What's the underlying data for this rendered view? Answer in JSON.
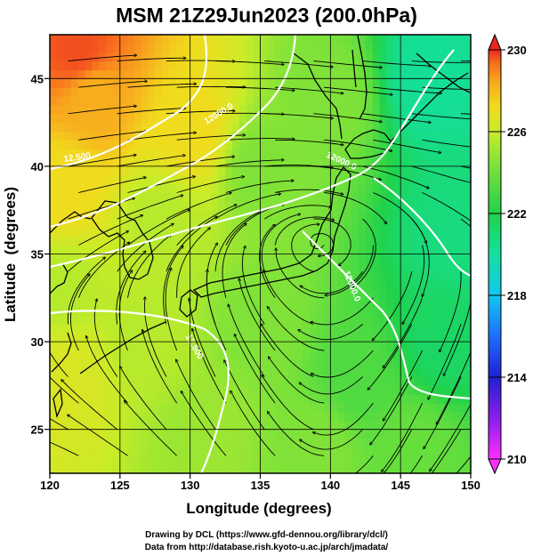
{
  "title": "MSM 21Z29Jun2023 (200.0hPa)",
  "x_axis": {
    "label": "Longitude (degrees)",
    "ticks": [
      "120",
      "125",
      "130",
      "135",
      "140",
      "145",
      "150"
    ]
  },
  "y_axis": {
    "label": "Latitude  (degrees)",
    "ticks": [
      "25",
      "30",
      "35",
      "40",
      "45"
    ]
  },
  "colorbar": {
    "ticks": [
      "210",
      "214",
      "218",
      "222",
      "226",
      "230"
    ],
    "min": 210,
    "max": 230,
    "colors": [
      "#ff30ff",
      "#a020f0",
      "#2020d0",
      "#1e6eff",
      "#12c8f0",
      "#14e0a0",
      "#20d24a",
      "#6ee03c",
      "#c8ec28",
      "#f0dc1e",
      "#f8aa1e",
      "#f86a1e",
      "#e6281e"
    ]
  },
  "contour_labels": [
    "12.500",
    "12.500",
    "12000.0",
    "12000.0",
    "12000.0"
  ],
  "credits": {
    "line1": "Drawing by DCL (https://www.gfd-dennou.org/library/dcl/)",
    "line2": "Data from http://database.rish.kyoto-u.ac.jp/arch/jmadata/"
  },
  "chart_data": {
    "type": "heatmap",
    "title": "MSM 21Z29Jun2023 (200.0hPa)",
    "xlabel": "Longitude (degrees)",
    "ylabel": "Latitude  (degrees)",
    "xlim": [
      120,
      150
    ],
    "ylim": [
      22.5,
      47.5
    ],
    "colorbar_range": [
      210,
      230
    ],
    "grid": true,
    "overlay": "wind streamlines with arrowheads; white geopotential height contours; coastlines",
    "field_samples": [
      {
        "lon": 122,
        "lat": 46.5,
        "value": 229
      },
      {
        "lon": 123,
        "lat": 44,
        "value": 226.5
      },
      {
        "lon": 130,
        "lat": 42,
        "value": 225
      },
      {
        "lon": 121,
        "lat": 39,
        "value": 225
      },
      {
        "lon": 128,
        "lat": 37,
        "value": 223
      },
      {
        "lon": 135,
        "lat": 40,
        "value": 222
      },
      {
        "lon": 140,
        "lat": 44,
        "value": 222
      },
      {
        "lon": 147,
        "lat": 45,
        "value": 218.5
      },
      {
        "lon": 149,
        "lat": 36,
        "value": 219
      },
      {
        "lon": 148,
        "lat": 30,
        "value": 219.5
      },
      {
        "lon": 142,
        "lat": 28,
        "value": 221
      },
      {
        "lon": 135,
        "lat": 31,
        "value": 222
      },
      {
        "lon": 127,
        "lat": 30,
        "value": 223
      },
      {
        "lon": 121,
        "lat": 28,
        "value": 224
      },
      {
        "lon": 121,
        "lat": 33,
        "value": 223
      },
      {
        "lon": 131,
        "lat": 25,
        "value": 222.5
      },
      {
        "lon": 139,
        "lat": 24,
        "value": 222
      },
      {
        "lon": 146,
        "lat": 24,
        "value": 221.5
      }
    ]
  }
}
